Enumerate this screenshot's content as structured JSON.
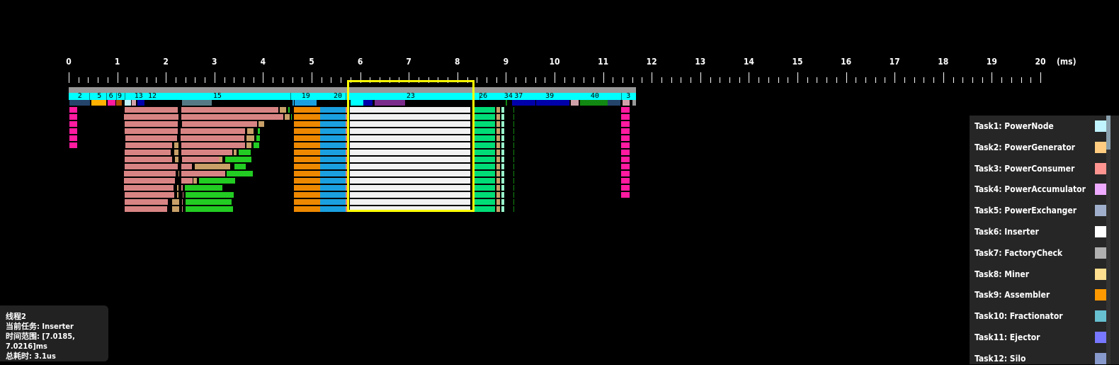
{
  "axis": {
    "unit": "(ms)",
    "ticks": [
      0,
      1,
      2,
      3,
      4,
      5,
      6,
      7,
      8,
      9,
      10,
      11,
      12,
      13,
      14,
      15,
      16,
      17,
      18,
      19,
      20
    ],
    "minor_step_ms": 0.2,
    "range_ms": [
      0,
      20
    ]
  },
  "colors": {
    "salmon": "#d98484",
    "tan": "#c8a068",
    "green": "#22cc22",
    "orange": "#ee8800",
    "blue": "#1aa0e0",
    "white": "#f2f2f2",
    "spring": "#00dd77",
    "mint": "#99ffcc",
    "magenta": "#ff1aa0",
    "gray": "#999999",
    "cyan": "#00ffff",
    "selection": "#ffff00",
    "navy": "#24446a",
    "amber": "#ffb000",
    "purple": "#7a2a8a",
    "dblue": "#0000aa",
    "teal": "#557a85",
    "rose": "#d0a0a8",
    "dgreen": "#118811",
    "ltcyan": "#c0f4ff",
    "brown": "#b05000"
  },
  "overview_bar": {
    "start_ms": 0,
    "end_ms": 11.68
  },
  "phases": {
    "start_ms": 0,
    "end_ms": 11.68,
    "labels": [
      {
        "text": "2",
        "ms": 0.23
      },
      {
        "text": "5",
        "ms": 0.63
      },
      {
        "text": "6",
        "ms": 0.87
      },
      {
        "text": "9",
        "ms": 1.05
      },
      {
        "text": "13",
        "ms": 1.44
      },
      {
        "text": "12",
        "ms": 1.72
      },
      {
        "text": "15",
        "ms": 3.06
      },
      {
        "text": "19",
        "ms": 4.88
      },
      {
        "text": "20",
        "ms": 5.54
      },
      {
        "text": "23",
        "ms": 7.04
      },
      {
        "text": "26",
        "ms": 8.53
      },
      {
        "text": "34",
        "ms": 9.05
      },
      {
        "text": "37",
        "ms": 9.26
      },
      {
        "text": "39",
        "ms": 9.9
      },
      {
        "text": "40",
        "ms": 10.83
      },
      {
        "text": "3",
        "ms": 11.52
      }
    ],
    "dividers_ms": [
      0.42,
      0.77,
      0.98,
      1.15,
      4.56,
      5.7,
      8.46,
      11.37
    ]
  },
  "task_strip": [
    [
      0.01,
      0.44,
      "navy"
    ],
    [
      0.46,
      0.77,
      "amber"
    ],
    [
      0.8,
      0.96,
      "magenta"
    ],
    [
      0.98,
      1.09,
      "brown"
    ],
    [
      1.15,
      1.29,
      "ltcyan"
    ],
    [
      1.3,
      1.38,
      "rose"
    ],
    [
      1.42,
      1.56,
      "dblue"
    ],
    [
      2.33,
      2.95,
      "teal"
    ],
    [
      4.6,
      4.63,
      "blue"
    ],
    [
      4.65,
      5.1,
      "blue"
    ],
    [
      5.8,
      6.07,
      "cyan"
    ],
    [
      6.07,
      6.25,
      "dblue"
    ],
    [
      6.3,
      6.92,
      "purple"
    ],
    [
      9.0,
      9.03,
      "dgreen"
    ],
    [
      9.12,
      9.6,
      "dblue"
    ],
    [
      9.62,
      10.3,
      "dblue"
    ],
    [
      10.34,
      10.5,
      "rose"
    ],
    [
      10.52,
      11.1,
      "dgreen"
    ],
    [
      11.1,
      11.35,
      "navy"
    ],
    [
      11.4,
      11.55,
      "rose"
    ],
    [
      11.6,
      11.68,
      "gray"
    ]
  ],
  "thread_rows": [
    [
      [
        0.01,
        0.17,
        "magenta"
      ],
      [
        1.15,
        2.25,
        "salmon"
      ],
      [
        2.32,
        4.31,
        "salmon"
      ],
      [
        4.34,
        4.48,
        "tan"
      ],
      [
        4.52,
        4.55,
        "green"
      ]
    ],
    [
      [
        0.01,
        0.17,
        "magenta"
      ],
      [
        1.14,
        2.26,
        "salmon"
      ],
      [
        2.32,
        4.42,
        "salmon"
      ],
      [
        4.45,
        4.55,
        "tan"
      ],
      [
        4.58,
        4.59,
        "green"
      ]
    ],
    [
      [
        0.01,
        0.17,
        "magenta"
      ],
      [
        1.15,
        2.25,
        "salmon"
      ],
      [
        2.33,
        3.88,
        "salmon"
      ],
      [
        3.91,
        4.02,
        "tan"
      ]
    ],
    [
      [
        0.01,
        0.17,
        "magenta"
      ],
      [
        1.15,
        2.25,
        "salmon"
      ],
      [
        2.3,
        3.63,
        "salmon"
      ],
      [
        3.67,
        3.8,
        "tan"
      ],
      [
        3.89,
        3.94,
        "green"
      ]
    ],
    [
      [
        0.01,
        0.17,
        "magenta"
      ],
      [
        1.17,
        2.23,
        "salmon"
      ],
      [
        2.3,
        3.62,
        "salmon"
      ],
      [
        3.66,
        3.82,
        "tan"
      ],
      [
        3.86,
        3.94,
        "green"
      ]
    ],
    [
      [
        0.01,
        0.17,
        "magenta"
      ],
      [
        1.17,
        2.13,
        "salmon"
      ],
      [
        2.17,
        2.26,
        "tan"
      ],
      [
        2.32,
        3.63,
        "salmon"
      ],
      [
        3.66,
        3.76,
        "tan"
      ],
      [
        3.8,
        3.92,
        "green"
      ]
    ],
    [
      [
        1.15,
        2.1,
        "salmon"
      ],
      [
        2.17,
        2.26,
        "tan"
      ],
      [
        2.32,
        3.37,
        "salmon"
      ],
      [
        3.4,
        3.46,
        "tan"
      ],
      [
        3.5,
        3.75,
        "green"
      ]
    ],
    [
      [
        1.15,
        2.13,
        "salmon"
      ],
      [
        2.19,
        2.26,
        "tan"
      ],
      [
        2.33,
        3.09,
        "salmon"
      ],
      [
        3.09,
        3.16,
        "tan"
      ],
      [
        3.22,
        3.76,
        "green"
      ]
    ],
    [
      [
        1.15,
        2.25,
        "salmon"
      ],
      [
        2.32,
        2.54,
        "salmon"
      ],
      [
        2.6,
        3.32,
        "tan"
      ],
      [
        3.41,
        3.64,
        "green"
      ]
    ],
    [
      [
        1.14,
        2.2,
        "salmon"
      ],
      [
        2.26,
        2.28,
        "tan"
      ],
      [
        2.32,
        3.22,
        "salmon"
      ],
      [
        3.25,
        3.79,
        "green"
      ]
    ],
    [
      [
        1.14,
        2.19,
        "salmon"
      ],
      [
        2.32,
        2.55,
        "salmon"
      ],
      [
        2.57,
        2.64,
        "tan"
      ],
      [
        2.68,
        3.43,
        "green"
      ]
    ],
    [
      [
        1.14,
        2.16,
        "salmon"
      ],
      [
        2.23,
        2.26,
        "tan"
      ],
      [
        2.32,
        2.35,
        "salmon"
      ],
      [
        2.39,
        3.17,
        "green"
      ]
    ],
    [
      [
        1.15,
        2.17,
        "salmon"
      ],
      [
        2.23,
        2.26,
        "tan"
      ],
      [
        2.35,
        2.36,
        "salmon"
      ],
      [
        2.41,
        3.4,
        "green"
      ]
    ],
    [
      [
        1.15,
        2.04,
        "salmon"
      ],
      [
        2.13,
        2.27,
        "tan"
      ],
      [
        2.33,
        2.35,
        "salmon"
      ],
      [
        2.41,
        3.35,
        "green"
      ]
    ],
    [
      [
        1.15,
        2.03,
        "salmon"
      ],
      [
        2.13,
        2.27,
        "tan"
      ],
      [
        2.33,
        2.35,
        "salmon"
      ],
      [
        2.41,
        3.38,
        "green"
      ]
    ]
  ],
  "common_segments": [
    [
      4.64,
      5.17,
      "orange"
    ],
    [
      5.17,
      5.7,
      "blue"
    ],
    [
      5.7,
      5.76,
      "salmon"
    ],
    [
      5.78,
      8.27,
      "white"
    ],
    [
      8.32,
      8.78,
      "spring"
    ],
    [
      8.8,
      8.88,
      "tan"
    ],
    [
      8.9,
      8.97,
      "mint"
    ],
    [
      9.15,
      9.17,
      "dgreen"
    ]
  ],
  "end_segment": {
    "seg": [
      11.37,
      11.54,
      "magenta"
    ],
    "rows": 13
  },
  "selection": {
    "start_ms": 5.76,
    "end_ms": 8.32
  },
  "tooltip": {
    "thread": "线程2",
    "task": "当前任务: Inserter",
    "range": "时间范围: [7.0185, 7.0216]ms",
    "duration": "总耗时: 3.1us"
  },
  "legend": [
    {
      "label": "Task1: PowerNode",
      "color": "#c0f4ff"
    },
    {
      "label": "Task2: PowerGenerator",
      "color": "#ffcc80"
    },
    {
      "label": "Task3: PowerConsumer",
      "color": "#ff9590"
    },
    {
      "label": "Task4: PowerAccumulator",
      "color": "#eeaaff"
    },
    {
      "label": "Task5: PowerExchanger",
      "color": "#a0b0cc"
    },
    {
      "label": "Task6: Inserter",
      "color": "#ffffff"
    },
    {
      "label": "Task7: FactoryCheck",
      "color": "#b0b0b0"
    },
    {
      "label": "Task8: Miner",
      "color": "#ffe090"
    },
    {
      "label": "Task9: Assembler",
      "color": "#ff9900"
    },
    {
      "label": "Task10: Fractionator",
      "color": "#66c0d0"
    },
    {
      "label": "Task11: Ejector",
      "color": "#7777ff"
    },
    {
      "label": "Task12: Silo",
      "color": "#8899cc"
    }
  ]
}
